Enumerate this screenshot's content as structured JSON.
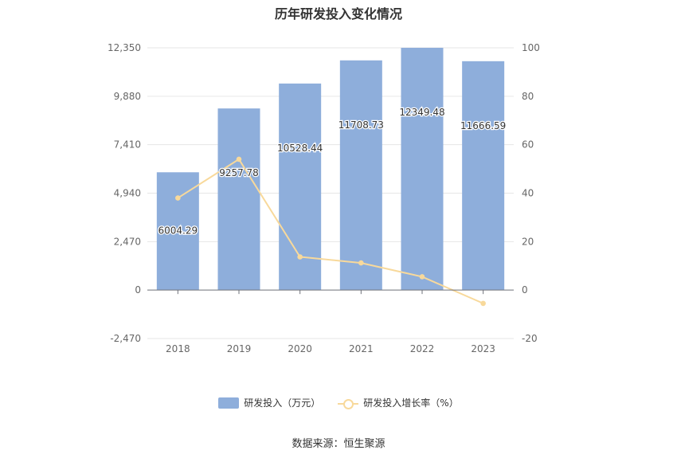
{
  "title": "历年研发投入变化情况",
  "source": "数据来源：恒生聚源",
  "colors": {
    "bar": "#8eaedb",
    "line": "#f8d99b",
    "grid": "#e6e6e6",
    "axis_text": "#666666",
    "label_text": "#333333"
  },
  "chart_data": {
    "type": "bar",
    "title": "历年研发投入变化情况",
    "categories": [
      "2018",
      "2019",
      "2020",
      "2021",
      "2022",
      "2023"
    ],
    "series": [
      {
        "name": "研发投入（万元）",
        "type": "bar",
        "axis": "left",
        "values": [
          6004.29,
          9257.78,
          10528.44,
          11708.73,
          12349.48,
          11666.59
        ],
        "labels": [
          "6004.29",
          "9257.78",
          "10528.44",
          "11708.73",
          "12349.48",
          "11666.59"
        ]
      },
      {
        "name": "研发投入增长率（%）",
        "type": "line",
        "axis": "right",
        "values": [
          38,
          54,
          13.7,
          11.2,
          5.5,
          -5.5
        ]
      }
    ],
    "y_left": {
      "ticks": [
        "12,350",
        "9,880",
        "7,410",
        "4,940",
        "2,470",
        "0",
        "-2,470"
      ],
      "tick_values": [
        12350,
        9880,
        7410,
        4940,
        2470,
        0,
        -2470
      ],
      "range": [
        -2470,
        12350
      ]
    },
    "y_right": {
      "ticks": [
        "100",
        "80",
        "60",
        "40",
        "20",
        "0",
        "-20"
      ],
      "tick_values": [
        100,
        80,
        60,
        40,
        20,
        0,
        -20
      ],
      "range": [
        -20,
        100
      ]
    },
    "grid": true,
    "legend_position": "bottom"
  },
  "legend": {
    "bar_label": "研发投入（万元）",
    "line_label": "研发投入增长率（%）"
  }
}
